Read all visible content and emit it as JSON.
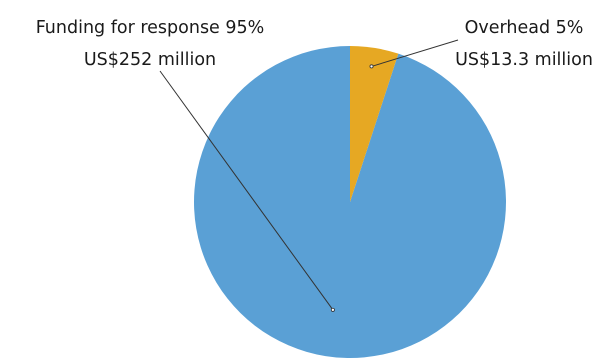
{
  "chart_data": {
    "type": "pie",
    "start_angle_deg": 0,
    "direction": "counterclockwise",
    "slices": [
      {
        "label": "Funding for response",
        "percent_text": "95%",
        "value": 252,
        "value_text": "US$252 million",
        "color": "#5aa0d5"
      },
      {
        "label": "Overhead",
        "percent_text": "5%",
        "value": 13.3,
        "value_text": "US$13.3 million",
        "color": "#e6a823"
      }
    ]
  }
}
